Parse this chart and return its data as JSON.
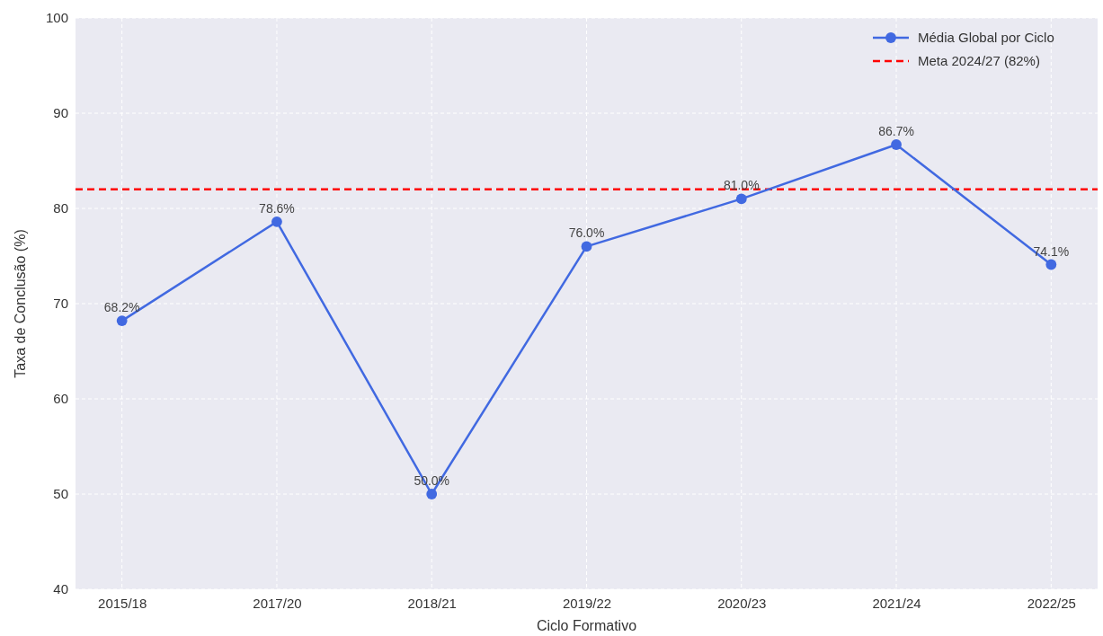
{
  "chart_data": {
    "type": "line",
    "xlabel": "Ciclo Formativo",
    "ylabel": "Taxa de Conclusão (%)",
    "categories": [
      "2015/18",
      "2017/20",
      "2018/21",
      "2019/22",
      "2020/23",
      "2021/24",
      "2022/25"
    ],
    "series": [
      {
        "name": "Média Global por Ciclo",
        "color": "#4169e1",
        "values": [
          68.2,
          78.6,
          50.0,
          76.0,
          81.0,
          86.7,
          74.1
        ],
        "value_labels": [
          "68.2%",
          "78.6%",
          "50.0%",
          "76.0%",
          "81.0%",
          "86.7%",
          "74.1%"
        ]
      }
    ],
    "ref_lines": [
      {
        "axis": "y",
        "value": 82,
        "label": "Meta 2024/27 (82%)",
        "color": "#ff0000",
        "line_style": "dashed"
      }
    ],
    "ylim": [
      40,
      100
    ],
    "yticks": [
      40,
      50,
      60,
      70,
      80,
      90,
      100
    ],
    "grid": true,
    "legend": "top right",
    "marker": "circle",
    "line_style": "solid"
  }
}
